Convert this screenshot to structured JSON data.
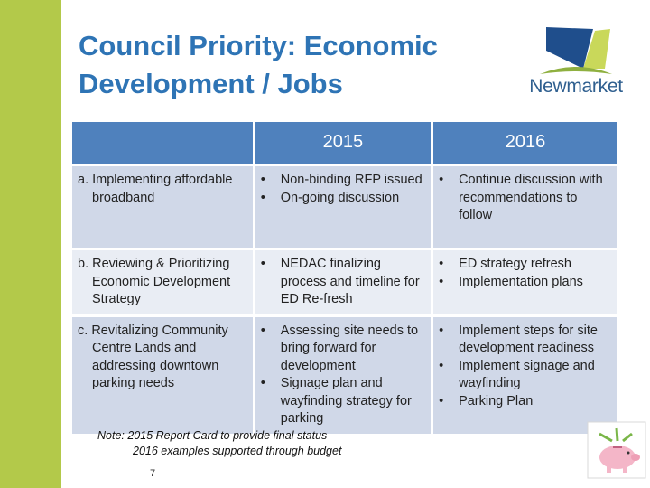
{
  "slide": {
    "title": "Council Priority: Economic Development / Jobs",
    "logo_text": "Newmarket",
    "colors": {
      "title": "#2e74b5",
      "left_bar": "#b3c94a",
      "header": "#4f81bd",
      "row_dark": "#d0d8e8",
      "row_light": "#e9edf4"
    }
  },
  "table": {
    "headers": [
      "",
      "2015",
      "2016"
    ],
    "rows": [
      {
        "prefix": "a.",
        "label": "Implementing affordable broadband",
        "col2015": [
          "Non-binding RFP issued",
          "On-going discussion"
        ],
        "col2016": [
          "Continue discussion with recommendations to follow"
        ]
      },
      {
        "prefix": "b.",
        "label": "Reviewing & Prioritizing Economic Development Strategy",
        "col2015": [
          "NEDAC finalizing process and timeline for ED Re-fresh"
        ],
        "col2016": [
          "ED strategy refresh",
          "Implementation plans"
        ]
      },
      {
        "prefix": "c.",
        "label": "Revitalizing Community Centre Lands and addressing downtown parking needs",
        "col2015": [
          "Assessing site needs to bring forward for development",
          "Signage plan and wayfinding strategy for parking"
        ],
        "col2016": [
          "Implement steps for site development readiness",
          "Implement signage and wayfinding",
          "Parking Plan"
        ]
      }
    ],
    "bullet": "•"
  },
  "note": {
    "line1": "Note:  2015 Report Card to provide final status",
    "line2": "2016 examples supported through budget"
  },
  "page_number": "7",
  "icons": {
    "logo": "newmarket-logo-icon",
    "piggy_bank": "piggy-bank-icon"
  }
}
